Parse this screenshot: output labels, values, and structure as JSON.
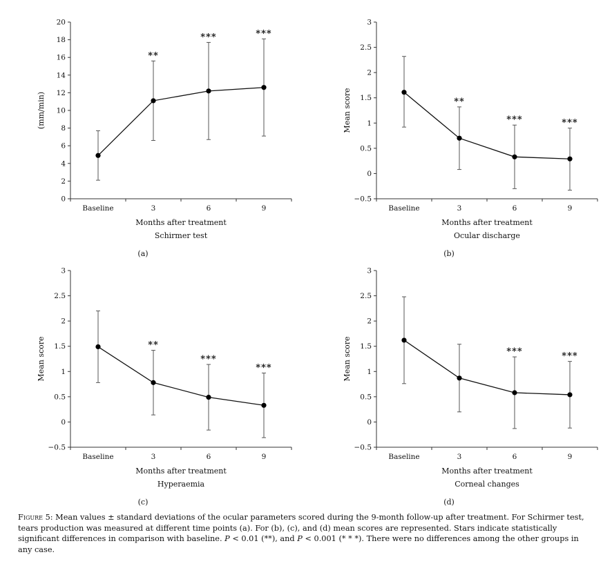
{
  "chart_data": [
    {
      "type": "line",
      "panel_label": "(a)",
      "title": "Schirmer test",
      "xlabel": "Months after treatment",
      "ylabel": "(mm/min)",
      "categories": [
        "Baseline",
        "3",
        "6",
        "9"
      ],
      "values": [
        4.9,
        11.1,
        12.2,
        12.6
      ],
      "error_low": [
        2.1,
        6.6,
        6.7,
        7.1
      ],
      "error_high": [
        7.7,
        15.6,
        17.7,
        18.1
      ],
      "significance": [
        "",
        "**",
        "***",
        "***"
      ],
      "ylim": [
        0,
        20
      ],
      "yticks": [
        "0",
        "2",
        "4",
        "6",
        "8",
        "10",
        "12",
        "14",
        "16",
        "18",
        "20"
      ]
    },
    {
      "type": "line",
      "panel_label": "(b)",
      "title": "Ocular discharge",
      "xlabel": "Months after treatment",
      "ylabel": "Mean score",
      "categories": [
        "Baseline",
        "3",
        "6",
        "9"
      ],
      "values": [
        1.61,
        0.7,
        0.33,
        0.29
      ],
      "error_low": [
        0.92,
        0.08,
        -0.3,
        -0.33
      ],
      "error_high": [
        2.32,
        1.32,
        0.96,
        0.9
      ],
      "significance": [
        "",
        "**",
        "***",
        "***"
      ],
      "ylim": [
        -0.5,
        3
      ],
      "yticks": [
        "−0.5",
        "0",
        "0.5",
        "1",
        "1.5",
        "2",
        "2.5",
        "3"
      ]
    },
    {
      "type": "line",
      "panel_label": "(c)",
      "title": "Hyperaemia",
      "xlabel": "Months after treatment",
      "ylabel": "Mean score",
      "categories": [
        "Baseline",
        "3",
        "6",
        "9"
      ],
      "values": [
        1.49,
        0.78,
        0.49,
        0.33
      ],
      "error_low": [
        0.78,
        0.14,
        -0.16,
        -0.31
      ],
      "error_high": [
        2.2,
        1.42,
        1.14,
        0.97
      ],
      "significance": [
        "",
        "**",
        "***",
        "***"
      ],
      "ylim": [
        -0.5,
        3
      ],
      "yticks": [
        "−0.5",
        "0",
        "0.5",
        "1",
        "1.5",
        "2",
        "2.5",
        "3"
      ]
    },
    {
      "type": "line",
      "panel_label": "(d)",
      "title": "Corneal changes",
      "xlabel": "Months after treatment",
      "ylabel": "Mean score",
      "categories": [
        "Baseline",
        "3",
        "6",
        "9"
      ],
      "values": [
        1.62,
        0.87,
        0.58,
        0.54
      ],
      "error_low": [
        0.76,
        0.2,
        -0.13,
        -0.12
      ],
      "error_high": [
        2.48,
        1.54,
        1.29,
        1.2
      ],
      "significance": [
        "",
        "",
        "***",
        "***"
      ],
      "ylim": [
        -0.5,
        3
      ],
      "yticks": [
        "−0.5",
        "0",
        "0.5",
        "1",
        "1.5",
        "2",
        "2.5",
        "3"
      ]
    }
  ],
  "caption": {
    "figure_label": "Figure 5:",
    "text_1": " Mean values ± standard deviations of the ocular parameters scored during the 9-month follow-up after treatment. For Schirmer test, tears production was measured at different time points (a). For (b), (c), and (d) mean scores are represented. Stars indicate statistically significant differences in comparison with baseline. ",
    "p_symbol_1": "P",
    "text_2": " < 0.01 (**), and ",
    "p_symbol_2": "P",
    "text_3": " < 0.001 (* * *). There were no differences among the other groups in any case."
  }
}
